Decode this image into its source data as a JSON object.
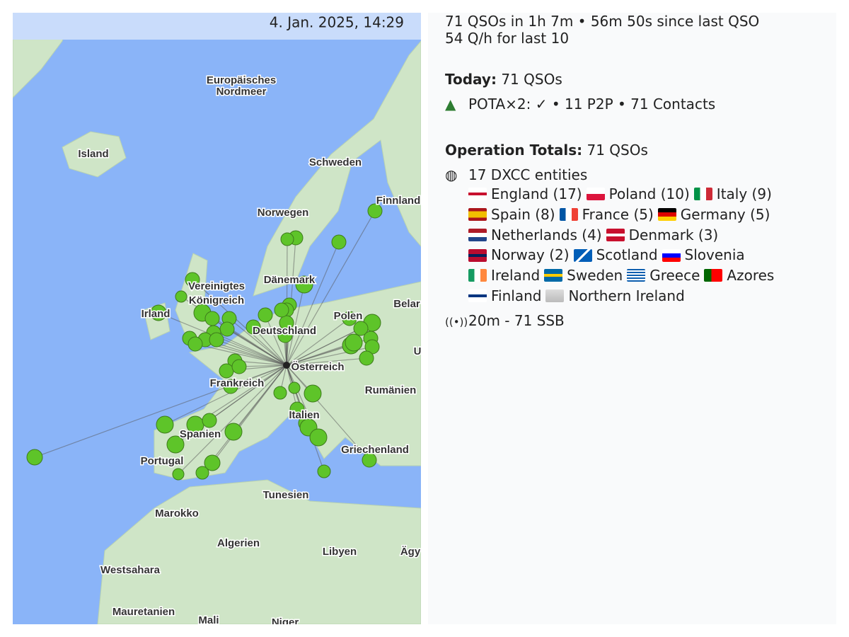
{
  "header": {
    "timestamp": "4. Jan. 2025, 14:29"
  },
  "map": {
    "labels": [
      "Europäisches",
      "Nordmeer",
      "Island",
      "Schweden",
      "Finnland",
      "Norwegen",
      "Dänemark",
      "Vereinigtes",
      "Königreich",
      "Irland",
      "Polen",
      "Belar",
      "Deutschland",
      "Österreich",
      "U",
      "Frankreich",
      "Rumänien",
      "Italien",
      "Spanien",
      "Griechenland",
      "Portugal",
      "Tunesien",
      "Marokko",
      "Algerien",
      "Libyen",
      "Ägy",
      "Westsahara",
      "Mauretanien",
      "Mali",
      "Niger"
    ]
  },
  "summary": {
    "lines": [
      "71 QSOs in 1h 7m • 56m 50s since last QSO",
      "54 Q/h for last 10"
    ]
  },
  "today": {
    "label": "Today:",
    "value": "71 QSOs"
  },
  "pota": "POTA×2: ✓ • 11 P2P • 71 Contacts",
  "operation": {
    "label": "Operation Totals:",
    "value": "71 QSOs"
  },
  "dxcc": {
    "summary": "17 DXCC entities",
    "entities": [
      "England (17)",
      "Poland (10)",
      "Italy (9)",
      "Spain (8)",
      "France (5)",
      "Germany (5)",
      "Netherlands (4)",
      "Denmark (3)",
      "Norway (2)",
      "Scotland",
      "Slovenia",
      "Ireland",
      "Sweden",
      "Greece",
      "Azores",
      "Finland",
      "Northern Ireland"
    ]
  },
  "band": "20m - 71 SSB"
}
